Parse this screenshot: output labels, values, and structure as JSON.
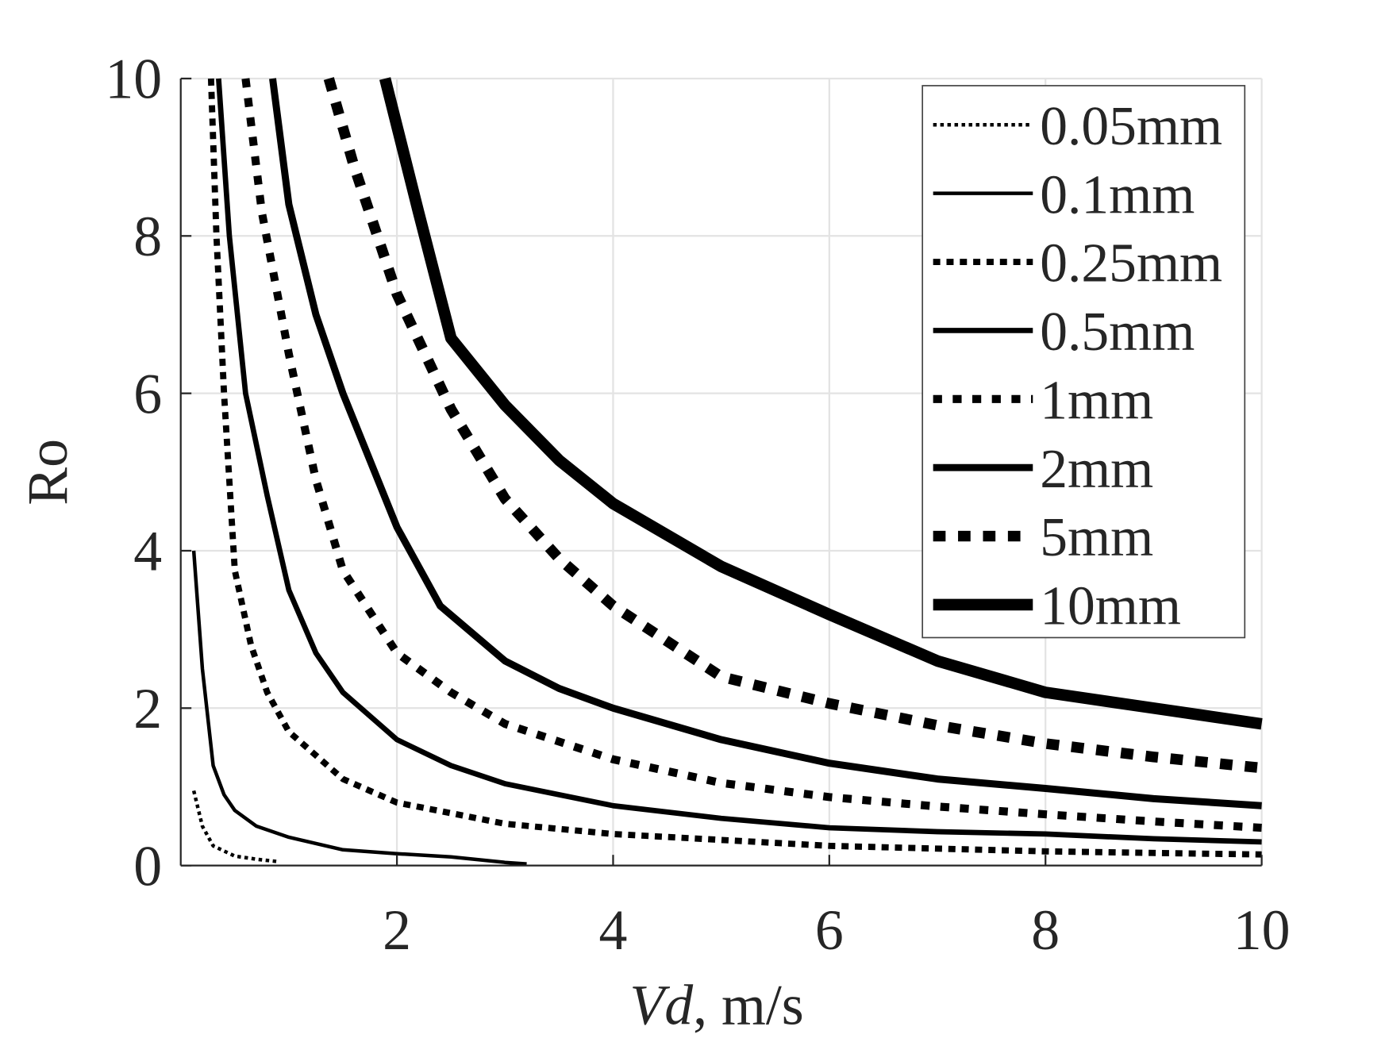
{
  "chart_data": {
    "type": "line",
    "title": "",
    "xlabel_italic": "Vd",
    "xlabel_rest": ", m/s",
    "ylabel": "Ro",
    "xlim": [
      0,
      10
    ],
    "ylim": [
      0,
      10
    ],
    "xticks": [
      2,
      4,
      6,
      8,
      10
    ],
    "yticks": [
      0,
      2,
      4,
      6,
      8,
      10
    ],
    "grid": true,
    "legend_position": "top-right",
    "series": [
      {
        "name": "0.05mm",
        "style": "dotted",
        "width": 4,
        "x": [
          0.12,
          0.2,
          0.3,
          0.5,
          0.7,
          0.9
        ],
        "y": [
          0.95,
          0.5,
          0.25,
          0.12,
          0.08,
          0.05
        ]
      },
      {
        "name": "0.1mm",
        "style": "solid",
        "width": 4,
        "x": [
          0.12,
          0.2,
          0.3,
          0.4,
          0.5,
          0.7,
          1,
          1.5,
          2,
          2.5,
          3,
          3.2
        ],
        "y": [
          4.0,
          2.5,
          1.27,
          0.9,
          0.7,
          0.5,
          0.36,
          0.2,
          0.15,
          0.11,
          0.04,
          0.02
        ]
      },
      {
        "name": "0.25mm",
        "style": "dashed-small",
        "width": 7,
        "x": [
          0.28,
          0.33,
          0.4,
          0.5,
          0.65,
          0.8,
          1,
          1.5,
          2,
          3,
          4,
          6,
          8,
          10
        ],
        "y": [
          10,
          8,
          6.0,
          3.75,
          2.8,
          2.2,
          1.7,
          1.1,
          0.8,
          0.53,
          0.4,
          0.25,
          0.18,
          0.14
        ]
      },
      {
        "name": "0.5mm",
        "style": "solid",
        "width": 6,
        "x": [
          0.35,
          0.45,
          0.6,
          0.8,
          1,
          1.25,
          1.5,
          2,
          2.5,
          3,
          4,
          5,
          6,
          7,
          8,
          9,
          10
        ],
        "y": [
          10,
          8,
          6.0,
          4.7,
          3.5,
          2.7,
          2.2,
          1.6,
          1.27,
          1.04,
          0.76,
          0.6,
          0.48,
          0.43,
          0.4,
          0.34,
          0.3
        ]
      },
      {
        "name": "1mm",
        "style": "dashed",
        "width": 9,
        "x": [
          0.6,
          0.75,
          1,
          1.25,
          1.5,
          2,
          2.5,
          3,
          4,
          5,
          6,
          7,
          8,
          9,
          10
        ],
        "y": [
          10,
          8.3,
          6.5,
          4.9,
          3.75,
          2.7,
          2.2,
          1.8,
          1.35,
          1.05,
          0.87,
          0.75,
          0.65,
          0.56,
          0.48
        ]
      },
      {
        "name": "2mm",
        "style": "solid",
        "width": 8,
        "x": [
          0.85,
          1,
          1.25,
          1.5,
          2,
          2.4,
          3,
          3.5,
          4,
          5,
          6,
          7,
          8,
          9,
          10
        ],
        "y": [
          10,
          8.4,
          7.0,
          6.0,
          4.3,
          3.3,
          2.6,
          2.25,
          2.0,
          1.6,
          1.3,
          1.1,
          0.98,
          0.85,
          0.76
        ]
      },
      {
        "name": "5mm",
        "style": "dashed-large",
        "width": 12,
        "x": [
          1.37,
          1.6,
          2,
          2.5,
          3,
          3.5,
          4,
          5,
          6,
          7,
          8,
          9,
          10
        ],
        "y": [
          10,
          8.9,
          7.26,
          5.8,
          4.66,
          3.9,
          3.3,
          2.4,
          2.06,
          1.78,
          1.55,
          1.38,
          1.24
        ]
      },
      {
        "name": "10mm",
        "style": "solid",
        "width": 13,
        "x": [
          1.89,
          2.2,
          2.5,
          3,
          3.5,
          4,
          5,
          6,
          7,
          8,
          9,
          10
        ],
        "y": [
          10,
          8.3,
          6.7,
          5.85,
          5.15,
          4.6,
          3.8,
          3.19,
          2.6,
          2.2,
          2.0,
          1.8
        ]
      }
    ]
  }
}
